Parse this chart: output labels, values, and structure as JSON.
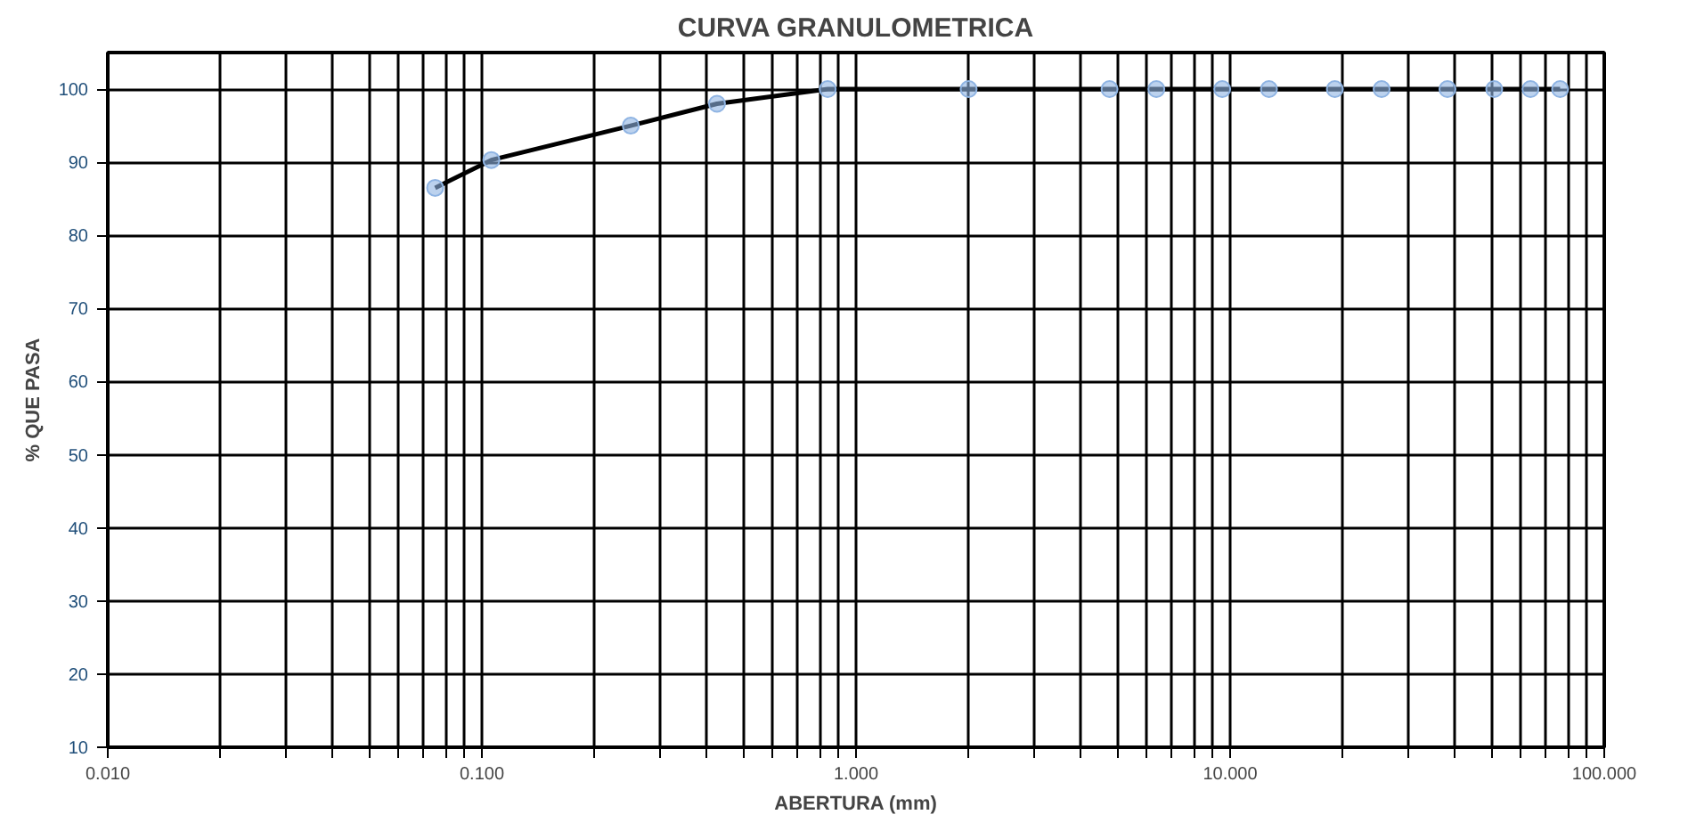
{
  "chart_data": {
    "type": "line",
    "title": "CURVA GRANULOMETRICA",
    "xlabel": "ABERTURA (mm)",
    "ylabel": "% QUE PASA",
    "x": [
      0.075,
      0.106,
      0.25,
      0.425,
      0.84,
      2.0,
      4.76,
      6.35,
      9.525,
      12.7,
      19.05,
      25.4,
      38.1,
      50.8,
      63.5,
      76.2
    ],
    "series": [
      {
        "color": "#000000",
        "colors": [
          "#8fb4e3",
          "#8fb4e3",
          "#8fb4e3",
          "#8fb4e3",
          "#8fb4e3",
          "#8fb4e3",
          "#8fb4e3",
          "#8fb4e3",
          "#8fb4e3",
          "#8fb4e3",
          "#8fb4e3",
          "#8fb4e3",
          "#8fb4e3",
          "#8fb4e3",
          "#8fb4e3",
          "#8fb4e3"
        ],
        "values": [
          86.5,
          90.3,
          95,
          98,
          100,
          100,
          100,
          100,
          100,
          100,
          100,
          100,
          100,
          100,
          100,
          100
        ]
      }
    ],
    "log": "x",
    "xlim": [
      0.01,
      100
    ],
    "ylim": [
      10,
      105
    ],
    "xticks": [
      {
        "value": 0.01,
        "label": "0.010"
      },
      {
        "value": 0.02,
        "label": null
      },
      {
        "value": 0.03,
        "label": null
      },
      {
        "value": 0.04,
        "label": null
      },
      {
        "value": 0.05,
        "label": null
      },
      {
        "value": 0.06,
        "label": null
      },
      {
        "value": 0.07,
        "label": null
      },
      {
        "value": 0.08,
        "label": null
      },
      {
        "value": 0.09,
        "label": null
      },
      {
        "value": 0.1,
        "label": "0.100"
      },
      {
        "value": 0.2,
        "label": null
      },
      {
        "value": 0.3,
        "label": null
      },
      {
        "value": 0.4,
        "label": null
      },
      {
        "value": 0.5,
        "label": null
      },
      {
        "value": 0.6,
        "label": null
      },
      {
        "value": 0.7,
        "label": null
      },
      {
        "value": 0.8,
        "label": null
      },
      {
        "value": 0.9,
        "label": null
      },
      {
        "value": 1,
        "label": "1.000"
      },
      {
        "value": 2,
        "label": null
      },
      {
        "value": 3,
        "label": null
      },
      {
        "value": 4,
        "label": null
      },
      {
        "value": 5,
        "label": null
      },
      {
        "value": 6,
        "label": null
      },
      {
        "value": 7,
        "label": null
      },
      {
        "value": 8,
        "label": null
      },
      {
        "value": 9,
        "label": null
      },
      {
        "value": 10,
        "label": "10.000"
      },
      {
        "value": 20,
        "label": null
      },
      {
        "value": 30,
        "label": null
      },
      {
        "value": 40,
        "label": null
      },
      {
        "value": 50,
        "label": null
      },
      {
        "value": 60,
        "label": null
      },
      {
        "value": 70,
        "label": null
      },
      {
        "value": 80,
        "label": null
      },
      {
        "value": 90,
        "label": null
      },
      {
        "value": 100,
        "label": "100.000"
      }
    ],
    "yticks": [
      10,
      20,
      30,
      40,
      50,
      60,
      70,
      80,
      90,
      100
    ],
    "grid": true,
    "marker": "circle",
    "line_style": "solid"
  }
}
